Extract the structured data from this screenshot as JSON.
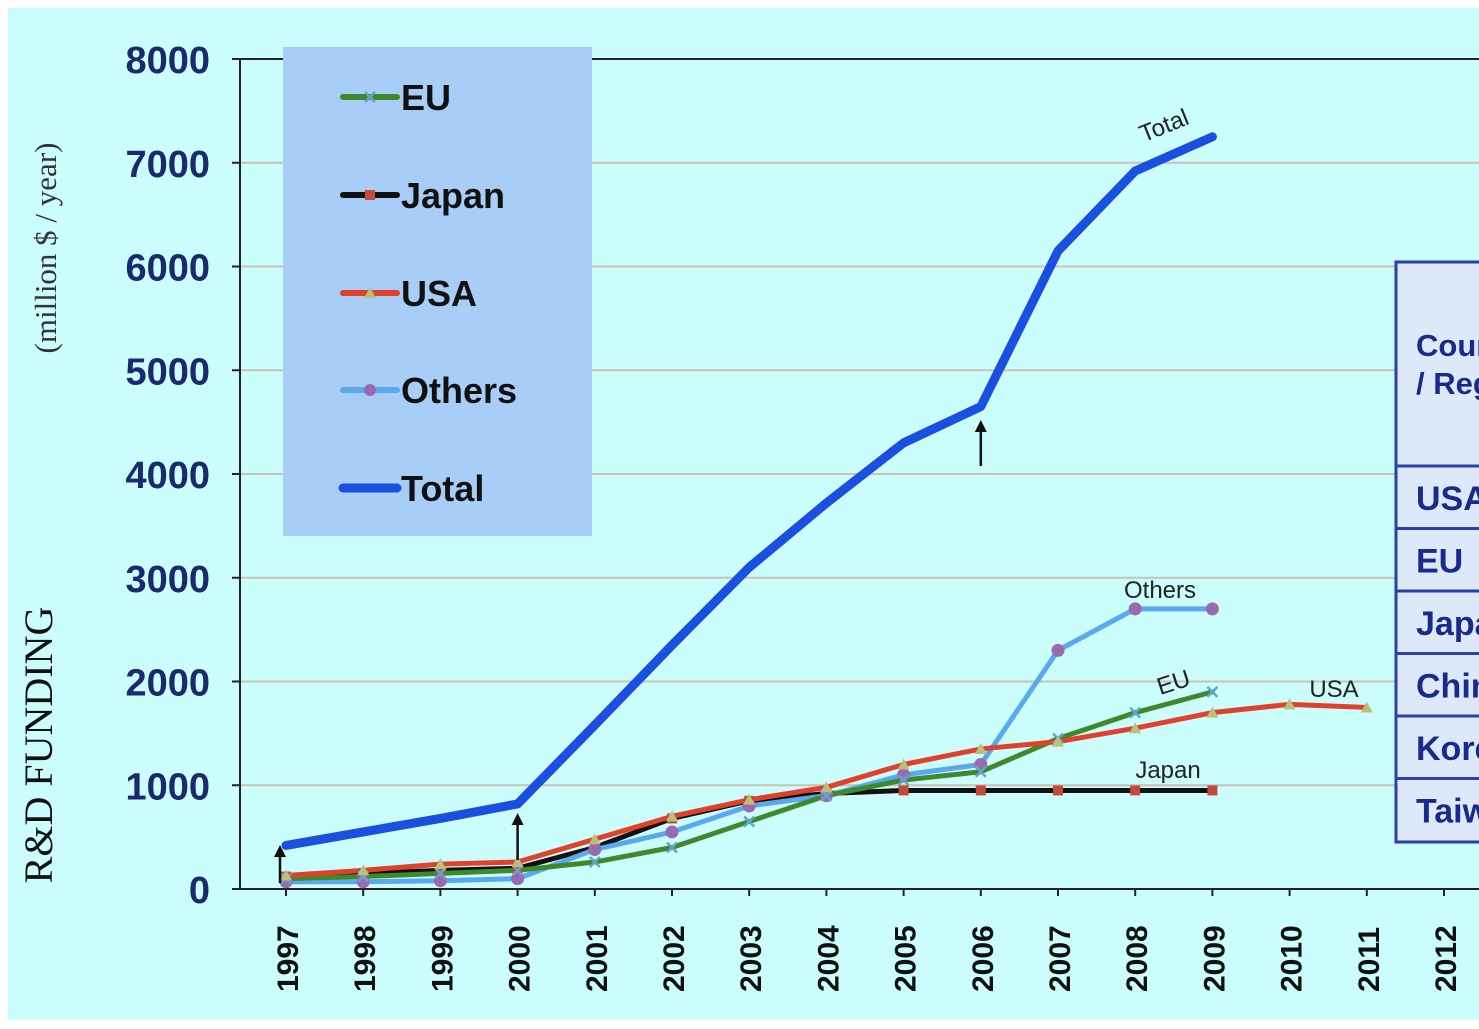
{
  "chart_data": {
    "type": "line",
    "ylabel_main": "R&D  FUNDING",
    "ylabel_unit": "(million $ / year)",
    "ylim": [
      0,
      8000
    ],
    "y_ticks": [
      "0",
      "1000",
      "2000",
      "3000",
      "4000",
      "5000",
      "6000",
      "7000",
      "8000"
    ],
    "x_ticks": [
      "1997",
      "1998",
      "1999",
      "2000",
      "2001",
      "2002",
      "2003",
      "2004",
      "2005",
      "2006",
      "2007",
      "2008",
      "2009",
      "2010",
      "2011",
      "2012"
    ],
    "grid": true,
    "legend_placement": "top-left",
    "series": [
      {
        "name": "EU",
        "label": "EU",
        "color": "#3e8a2a",
        "marker": "x",
        "x": [
          1997,
          1998,
          1999,
          2000,
          2001,
          2002,
          2003,
          2004,
          2005,
          2006,
          2007,
          2008,
          2009
        ],
        "values": [
          100,
          120,
          150,
          180,
          260,
          400,
          650,
          900,
          1050,
          1130,
          1450,
          1700,
          1900
        ]
      },
      {
        "name": "Japan",
        "label": "Japan",
        "color": "#111111",
        "marker": "square",
        "x": [
          1997,
          1998,
          1999,
          2000,
          2001,
          2002,
          2003,
          2004,
          2005,
          2006,
          2007,
          2008,
          2009
        ],
        "values": [
          120,
          150,
          180,
          200,
          400,
          680,
          850,
          920,
          950,
          950,
          950,
          950,
          950
        ]
      },
      {
        "name": "USA",
        "label": "USA",
        "color": "#e0412a",
        "marker": "triangle",
        "x": [
          1997,
          1998,
          1999,
          2000,
          2001,
          2002,
          2003,
          2004,
          2005,
          2006,
          2007,
          2008,
          2009,
          2010,
          2011
        ],
        "values": [
          130,
          180,
          240,
          260,
          480,
          700,
          860,
          980,
          1200,
          1350,
          1420,
          1550,
          1700,
          1780,
          1750
        ]
      },
      {
        "name": "Others",
        "label": "Others",
        "color": "#5aa8ee",
        "marker": "circle",
        "x": [
          1997,
          1998,
          1999,
          2000,
          2001,
          2002,
          2003,
          2004,
          2005,
          2006,
          2007,
          2008,
          2009
        ],
        "values": [
          70,
          70,
          80,
          100,
          380,
          550,
          800,
          900,
          1100,
          1200,
          2300,
          2700,
          2700
        ]
      },
      {
        "name": "Total",
        "label": "Total",
        "color": "#1a4fe0",
        "marker": "none",
        "x": [
          1997,
          1998,
          1999,
          2000,
          2001,
          2002,
          2003,
          2004,
          2005,
          2006,
          2007,
          2008,
          2009
        ],
        "values": [
          420,
          550,
          680,
          820,
          1580,
          2350,
          3100,
          3720,
          4300,
          4650,
          6150,
          6920,
          7250
        ]
      }
    ],
    "arrows_at": [
      1997,
      2000,
      2006
    ],
    "side_table": {
      "header": "Cour / Reg",
      "rows": [
        "USA",
        "EU",
        "Japa",
        "Chin",
        "Kore",
        "Taiw"
      ]
    }
  }
}
